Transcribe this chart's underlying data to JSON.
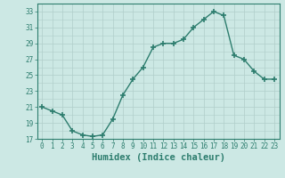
{
  "x": [
    0,
    1,
    2,
    3,
    4,
    5,
    6,
    7,
    8,
    9,
    10,
    11,
    12,
    13,
    14,
    15,
    16,
    17,
    18,
    19,
    20,
    21,
    22,
    23
  ],
  "y": [
    21,
    20.5,
    20,
    18,
    17.5,
    17.3,
    17.5,
    19.5,
    22.5,
    24.5,
    26,
    28.5,
    29,
    29,
    29.5,
    31,
    32,
    33,
    32.5,
    27.5,
    27,
    25.5,
    24.5,
    24.5
  ],
  "line_color": "#2d7d6e",
  "marker": "+",
  "marker_size": 4,
  "marker_linewidth": 1.2,
  "bg_color": "#cce8e4",
  "grid_major_color": "#b0ceca",
  "grid_minor_color": "#b0ceca",
  "xlabel": "Humidex (Indice chaleur)",
  "ylim": [
    17,
    34
  ],
  "xlim": [
    -0.5,
    23.5
  ],
  "yticks": [
    17,
    19,
    21,
    23,
    25,
    27,
    29,
    31,
    33
  ],
  "ytick_minor": [
    18,
    20,
    22,
    24,
    26,
    28,
    30,
    32
  ],
  "xticks": [
    0,
    1,
    2,
    3,
    4,
    5,
    6,
    7,
    8,
    9,
    10,
    11,
    12,
    13,
    14,
    15,
    16,
    17,
    18,
    19,
    20,
    21,
    22,
    23
  ],
  "tick_fontsize": 5.5,
  "xlabel_fontsize": 7.5,
  "tick_color": "#2d7d6e",
  "axis_color": "#2d7d6e",
  "line_width": 1.0
}
